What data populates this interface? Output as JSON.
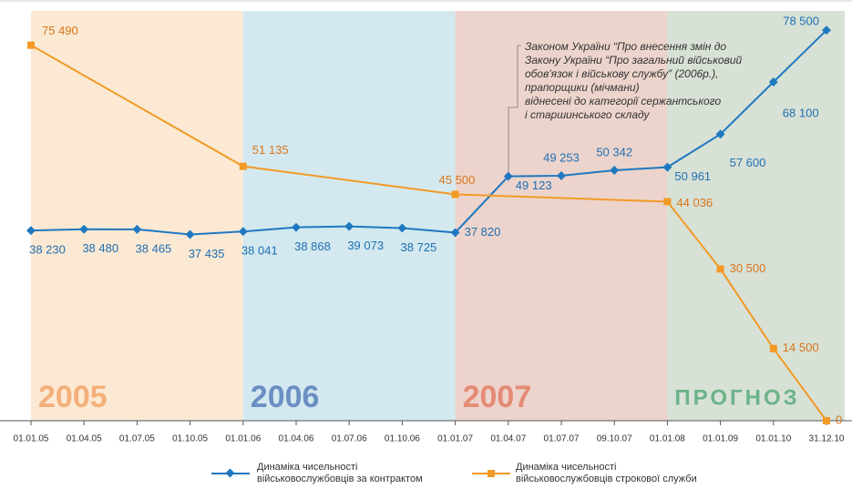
{
  "chart_data": {
    "type": "line",
    "categories": [
      "01.01.05",
      "01.04.05",
      "01.07.05",
      "01.10.05",
      "01.01.06",
      "01.04.06",
      "01.07.06",
      "01.10.06",
      "01.01.07",
      "01.04.07",
      "01.07.07",
      "09.10.07",
      "01.01.08",
      "01.01.09",
      "01.01.10",
      "31.12.10"
    ],
    "ylim": [
      0,
      80000
    ],
    "periods": [
      {
        "label": "2005",
        "from": "01.01.05",
        "to": "01.01.06",
        "color": "#fbe9d3",
        "text_color": "#f4b07a"
      },
      {
        "label": "2006",
        "from": "01.01.06",
        "to": "01.01.07",
        "color": "#d3e9ef",
        "text_color": "#6b8fc2"
      },
      {
        "label": "2007",
        "from": "01.01.07",
        "to": "01.01.08",
        "color": "#ecd4cc",
        "text_color": "#e48b76"
      },
      {
        "label": "ПРОГНОЗ",
        "from": "01.01.08",
        "to": "31.12.10",
        "color": "#d7e1d5",
        "text_color": "#6cb38a"
      }
    ],
    "series": [
      {
        "name": "Динаміка чисельності\nвійськовослужбовців за контрактом",
        "color": "#1f78c1",
        "marker": "diamond",
        "x": [
          "01.01.05",
          "01.04.05",
          "01.07.05",
          "01.10.05",
          "01.01.06",
          "01.04.06",
          "01.07.06",
          "01.10.06",
          "01.01.07",
          "01.04.07",
          "01.07.07",
          "09.10.07",
          "01.01.08",
          "01.01.09",
          "01.01.10",
          "31.12.10"
        ],
        "values": [
          38230,
          38480,
          38465,
          37435,
          38041,
          38868,
          39073,
          38725,
          37820,
          49123,
          49253,
          50342,
          50961,
          57600,
          68100,
          78500
        ],
        "value_labels": [
          "38 230",
          "38 480",
          "38 465",
          "37 435",
          "38 041",
          "38 868",
          "39 073",
          "38 725",
          "37 820",
          "49 123",
          "49 253",
          "50 342",
          "50 961",
          "57 600",
          "68 100",
          "78 500"
        ]
      },
      {
        "name": "Динаміка чисельності\nвійськовослужбовців строкової служби",
        "color": "#f39a26",
        "marker": "square",
        "x": [
          "01.01.05",
          "01.01.06",
          "01.01.07",
          "01.01.08",
          "01.01.09",
          "01.01.10",
          "31.12.10"
        ],
        "values": [
          75490,
          51135,
          45500,
          44036,
          30500,
          14500,
          0
        ],
        "value_labels": [
          "75 490",
          "51 135",
          "45 500",
          "44 036",
          "30 500",
          "14 500",
          "0"
        ]
      }
    ],
    "annotation": "Законом України “Про внесення змін до\nЗакону України “Про загальний військовий\nобов'язок і військову службу” (2006р.),\nпрапорщики (мічмани)\nвіднесені до категорії сержантського\nі старшинського складу"
  }
}
